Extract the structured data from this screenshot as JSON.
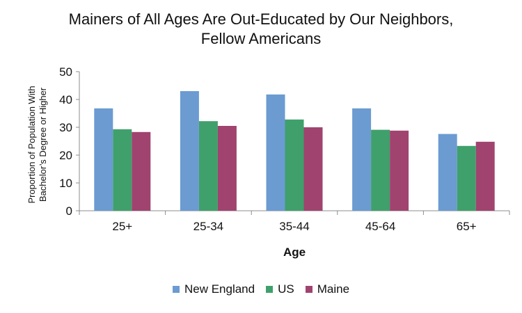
{
  "chart_data": {
    "type": "bar",
    "title_lines": [
      "Mainers of All Ages Are Out-Educated by Our Neighbors,",
      "Fellow Americans"
    ],
    "xlabel": "Age",
    "ylabel_lines": [
      "Proportion of Population With",
      "Bachelor’s Degree or Higher"
    ],
    "categories": [
      "25+",
      "25-34",
      "35-44",
      "45-64",
      "65+"
    ],
    "series": [
      {
        "name": "New England",
        "color": "#6b9bd1",
        "values": [
          36.8,
          43.0,
          41.8,
          36.8,
          27.6
        ]
      },
      {
        "name": "US",
        "color": "#3fa06b",
        "values": [
          29.3,
          32.2,
          32.8,
          29.1,
          23.3
        ]
      },
      {
        "name": "Maine",
        "color": "#a0436f",
        "values": [
          28.3,
          30.5,
          30.0,
          28.8,
          24.8
        ]
      }
    ],
    "ylim": [
      0,
      50
    ],
    "yticks": [
      0,
      10,
      20,
      30,
      40,
      50
    ],
    "grid": false,
    "legend_position": "bottom"
  }
}
